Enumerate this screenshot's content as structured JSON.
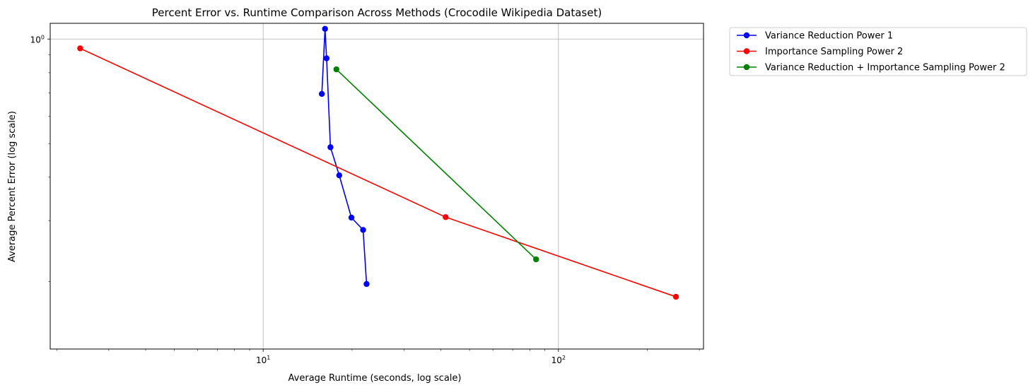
{
  "chart_data": {
    "type": "line",
    "title": "Percent Error vs. Runtime Comparison Across Methods (Crocodile Wikipedia Dataset)",
    "xlabel": "Average Runtime (seconds, log scale)",
    "ylabel": "Average Percent Error (log scale)",
    "xscale": "log",
    "yscale": "log",
    "xlim": [
      1.9,
      310
    ],
    "ylim": [
      0.128,
      1.11
    ],
    "grid": true,
    "legend_position": "outside-top-right",
    "x_ticks": [
      {
        "value": 10,
        "base": "10",
        "exp": "1"
      },
      {
        "value": 100,
        "base": "10",
        "exp": "2"
      }
    ],
    "y_ticks": [
      {
        "value": 1,
        "base": "10",
        "exp": "0"
      }
    ],
    "series": [
      {
        "name": "Variance Reduction Power 1",
        "color": "#0000ff",
        "marker": "circle",
        "points": [
          {
            "x": 15.8,
            "y": 0.695
          },
          {
            "x": 16.2,
            "y": 1.07
          },
          {
            "x": 16.4,
            "y": 0.88
          },
          {
            "x": 16.9,
            "y": 0.488
          },
          {
            "x": 18.1,
            "y": 0.405
          },
          {
            "x": 19.9,
            "y": 0.306
          },
          {
            "x": 21.8,
            "y": 0.282
          },
          {
            "x": 22.4,
            "y": 0.197
          }
        ]
      },
      {
        "name": "Importance Sampling Power 2",
        "color": "#ff0000",
        "marker": "circle",
        "points": [
          {
            "x": 2.4,
            "y": 0.94
          },
          {
            "x": 41.5,
            "y": 0.307
          },
          {
            "x": 250,
            "y": 0.181
          }
        ]
      },
      {
        "name": "Variance Reduction + Importance Sampling Power 2",
        "color": "#008000",
        "marker": "circle",
        "points": [
          {
            "x": 17.7,
            "y": 0.818
          },
          {
            "x": 84,
            "y": 0.232
          }
        ]
      }
    ]
  }
}
